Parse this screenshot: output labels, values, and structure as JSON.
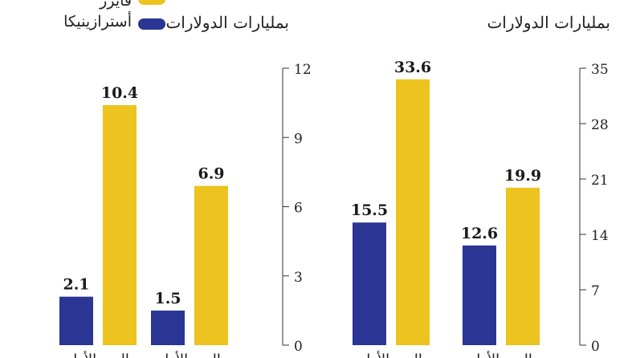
{
  "legend": {
    "items": [
      {
        "label": "أسترازينيكا",
        "color": "#2b3593"
      },
      {
        "label": "فايزر",
        "color": "#ecc31f"
      }
    ]
  },
  "chart_data": [
    {
      "type": "bar",
      "subtitle": "بمليارات الدولارات",
      "ylim": [
        0,
        12
      ],
      "yticks": [
        "0",
        "3",
        "6",
        "9",
        "12"
      ],
      "groups": [
        {
          "label": "الربع الأول",
          "values": [
            1.5,
            6.9
          ],
          "value_labels": [
            "1.5",
            "6.9"
          ]
        },
        {
          "label": "الربع الأول",
          "values": [
            2.1,
            10.4
          ],
          "value_labels": [
            "2.1",
            "10.4"
          ]
        }
      ],
      "series": [
        "أسترازينيكا",
        "فايزر"
      ]
    },
    {
      "type": "bar",
      "subtitle": "بمليارات الدولارات",
      "ylim": [
        0,
        35
      ],
      "yticks": [
        "0",
        "7",
        "14",
        "21",
        "28",
        "35"
      ],
      "groups": [
        {
          "label": "الربع الأول",
          "values": [
            12.6,
            19.9
          ],
          "value_labels": [
            "12.6",
            "19.9"
          ]
        },
        {
          "label": "الربع الأول",
          "values": [
            15.5,
            33.6
          ],
          "value_labels": [
            "15.5",
            "33.6"
          ]
        }
      ],
      "series": [
        "أسترازينيكا",
        "فايزر"
      ]
    }
  ]
}
